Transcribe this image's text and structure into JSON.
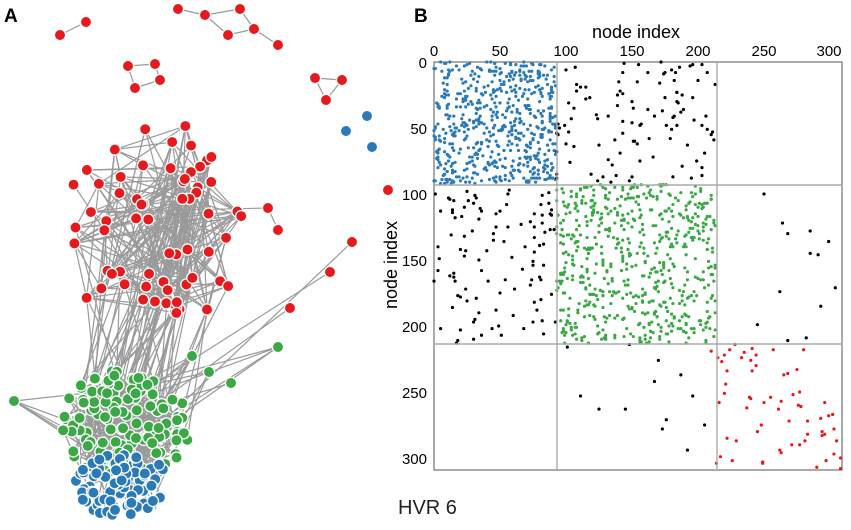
{
  "panel_a": {
    "letter": "A",
    "colors": {
      "red": "#e41a1c",
      "green": "#3aa845",
      "blue": "#2a7ab8",
      "edge": "#9a9a9a"
    }
  },
  "panel_b": {
    "letter": "B",
    "xlabel": "node index",
    "ylabel": "node index",
    "xticks": [
      "0",
      "50",
      "100",
      "150",
      "200",
      "250",
      "300"
    ],
    "yticks": [
      "0",
      "50",
      "100",
      "150",
      "200",
      "250",
      "300"
    ],
    "colors": {
      "blue": "#2a7ab8",
      "green": "#3aa845",
      "red": "#e41a1c",
      "offblock": "#000000",
      "divider": "#aaaaaa"
    }
  },
  "caption": "HVR 6"
}
